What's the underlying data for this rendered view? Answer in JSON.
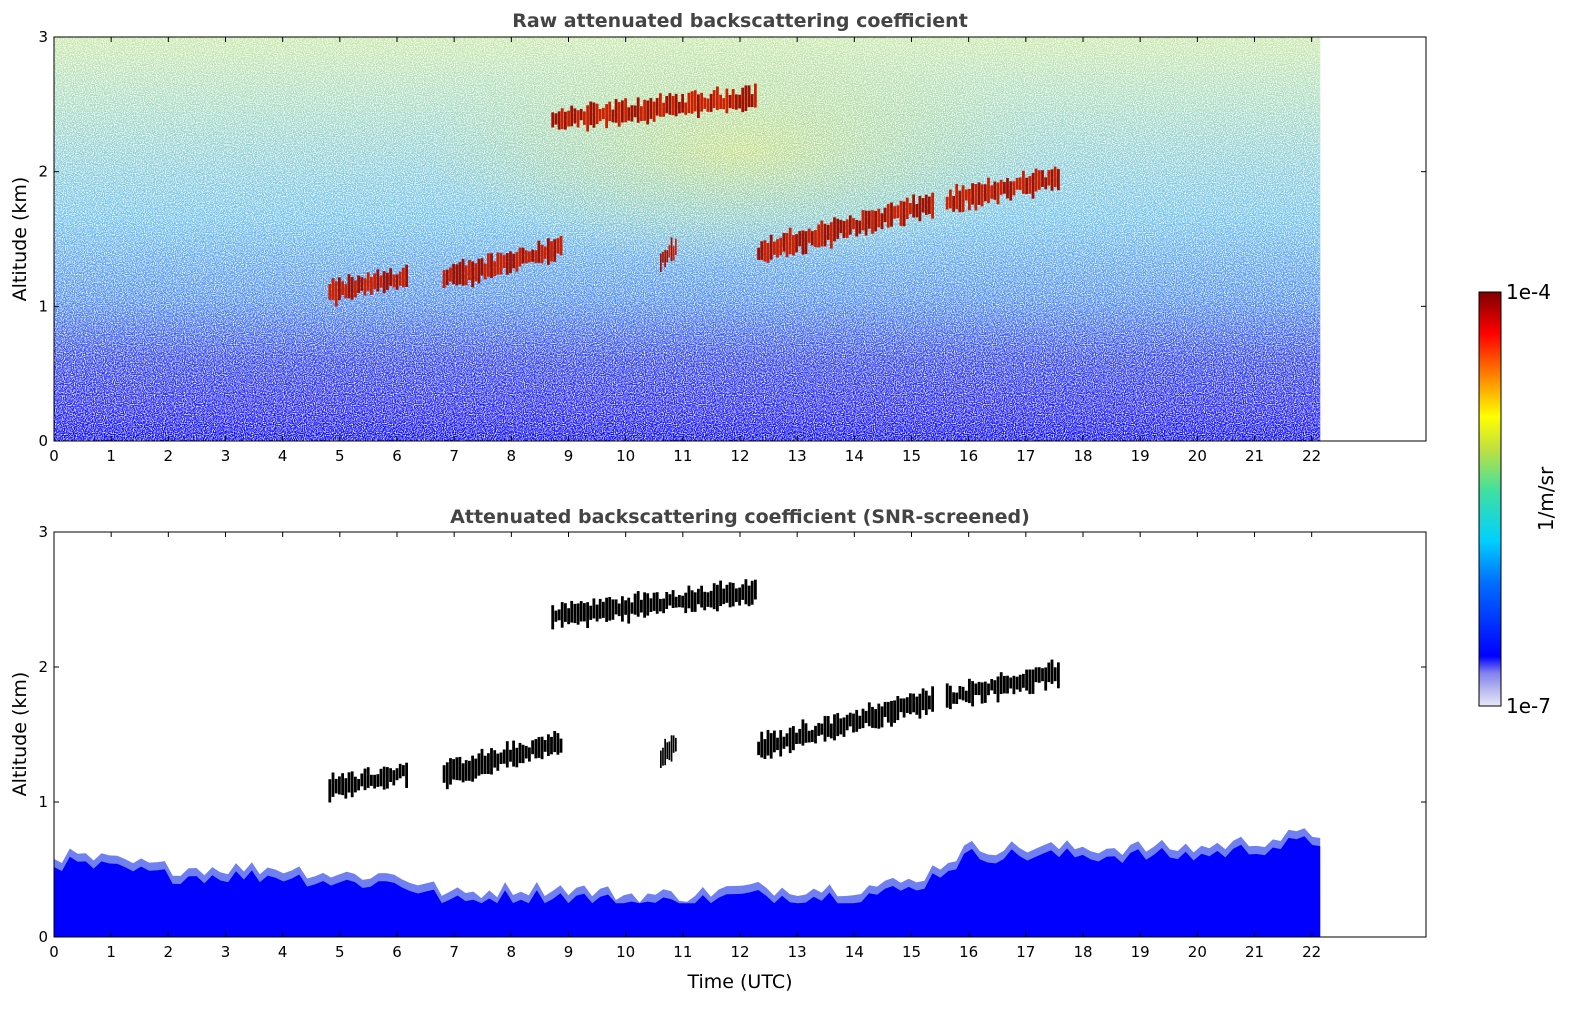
{
  "chart_data": [
    {
      "type": "heatmap",
      "title": "Raw attenuated backscattering coefficient",
      "xlabel": "",
      "ylabel": "Altitude (km)",
      "x_ticks": [
        "0",
        "1",
        "2",
        "3",
        "4",
        "5",
        "6",
        "7",
        "8",
        "9",
        "10",
        "11",
        "12",
        "13",
        "14",
        "15",
        "16",
        "17",
        "18",
        "19",
        "20",
        "21",
        "22"
      ],
      "y_ticks": [
        "0",
        "1",
        "2",
        "3"
      ],
      "xlim": [
        0,
        24
      ],
      "ylim": [
        0,
        3
      ],
      "data_end_x": 22.15,
      "grid": false,
      "colormap": "jet",
      "cloud_layers": [
        {
          "x": [
            4.8,
            6.2
          ],
          "y": [
            1.05,
            1.25
          ]
        },
        {
          "x": [
            6.8,
            8.9
          ],
          "y": [
            1.1,
            1.5
          ]
        },
        {
          "x": [
            8.7,
            12.3
          ],
          "y": [
            2.3,
            2.6
          ]
        },
        {
          "x": [
            10.6,
            10.9
          ],
          "y": [
            1.3,
            1.45
          ]
        },
        {
          "x": [
            12.3,
            15.4
          ],
          "y": [
            1.25,
            1.85
          ]
        },
        {
          "x": [
            15.6,
            17.6
          ],
          "y": [
            1.7,
            2.0
          ]
        }
      ]
    },
    {
      "type": "heatmap",
      "title": "Attenuated backscattering coefficient (SNR-screened)",
      "xlabel": "Time (UTC)",
      "ylabel": "Altitude (km)",
      "x_ticks": [
        "0",
        "1",
        "2",
        "3",
        "4",
        "5",
        "6",
        "7",
        "8",
        "9",
        "10",
        "11",
        "12",
        "13",
        "14",
        "15",
        "16",
        "17",
        "18",
        "19",
        "20",
        "21",
        "22"
      ],
      "y_ticks": [
        "0",
        "1",
        "2",
        "3"
      ],
      "xlim": [
        0,
        24
      ],
      "ylim": [
        0,
        3
      ],
      "data_end_x": 22.15,
      "grid": false,
      "colormap": "jet",
      "boundary_layer_top_km": [
        0.6,
        0.55,
        0.5,
        0.5,
        0.5,
        0.45,
        0.45,
        0.3,
        0.35,
        0.35,
        0.3,
        0.3,
        0.35,
        0.35,
        0.35,
        0.4,
        0.65,
        0.65,
        0.65,
        0.65,
        0.65,
        0.7,
        0.75
      ],
      "cloud_layers": [
        {
          "x": [
            4.8,
            6.2
          ],
          "y": [
            1.05,
            1.25
          ]
        },
        {
          "x": [
            6.8,
            8.9
          ],
          "y": [
            1.1,
            1.5
          ]
        },
        {
          "x": [
            8.7,
            12.3
          ],
          "y": [
            2.3,
            2.6
          ]
        },
        {
          "x": [
            10.6,
            10.9
          ],
          "y": [
            1.3,
            1.45
          ]
        },
        {
          "x": [
            12.3,
            15.4
          ],
          "y": [
            1.25,
            1.85
          ]
        },
        {
          "x": [
            15.6,
            17.6
          ],
          "y": [
            1.7,
            2.0
          ]
        }
      ]
    }
  ],
  "colorbar": {
    "label": "1/m/sr",
    "max_label": "1e-4",
    "min_label": "1e-7",
    "scale": "log",
    "colors": [
      "#e8e8f8",
      "#b8b8f0",
      "#8080f0",
      "#0000ff",
      "#0070ff",
      "#00d0ff",
      "#40e0a0",
      "#c0e040",
      "#ffff00",
      "#ff8000",
      "#ff0000",
      "#800000"
    ]
  }
}
